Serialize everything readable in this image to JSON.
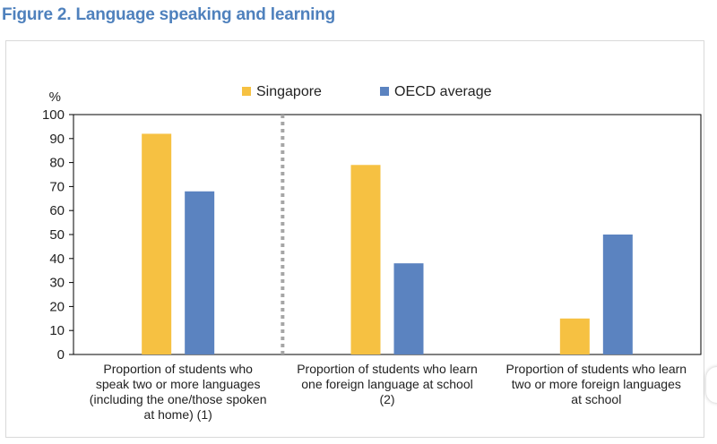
{
  "figure": {
    "title": "Figure 2. Language speaking and learning"
  },
  "chart_data": {
    "type": "bar",
    "title": "Figure 2. Language speaking and learning",
    "ylabel": "%",
    "xlabel": "",
    "ylim": [
      0,
      100
    ],
    "yticks": [
      0,
      10,
      20,
      30,
      40,
      50,
      60,
      70,
      80,
      90,
      100
    ],
    "legend_position": "top",
    "categories": [
      "Proportion of students who speak two or more languages (including the one/those spoken at home) (1)",
      "Proportion of students who learn one foreign language at school (2)",
      "Proportion of students who learn two or more foreign languages at school"
    ],
    "category_lines": [
      [
        "Proportion of students who",
        "speak two or more languages",
        "(including the one/those spoken",
        "at home) (1)"
      ],
      [
        "Proportion of students who learn",
        "one foreign language at school",
        "(2)"
      ],
      [
        "Proportion of students who learn",
        "two or more foreign languages",
        "at school"
      ]
    ],
    "series": [
      {
        "name": "Singapore",
        "color": "#f6c142",
        "values": [
          92,
          79,
          15
        ]
      },
      {
        "name": "OECD average",
        "color": "#5b83c0",
        "values": [
          68,
          38,
          50
        ]
      }
    ]
  }
}
